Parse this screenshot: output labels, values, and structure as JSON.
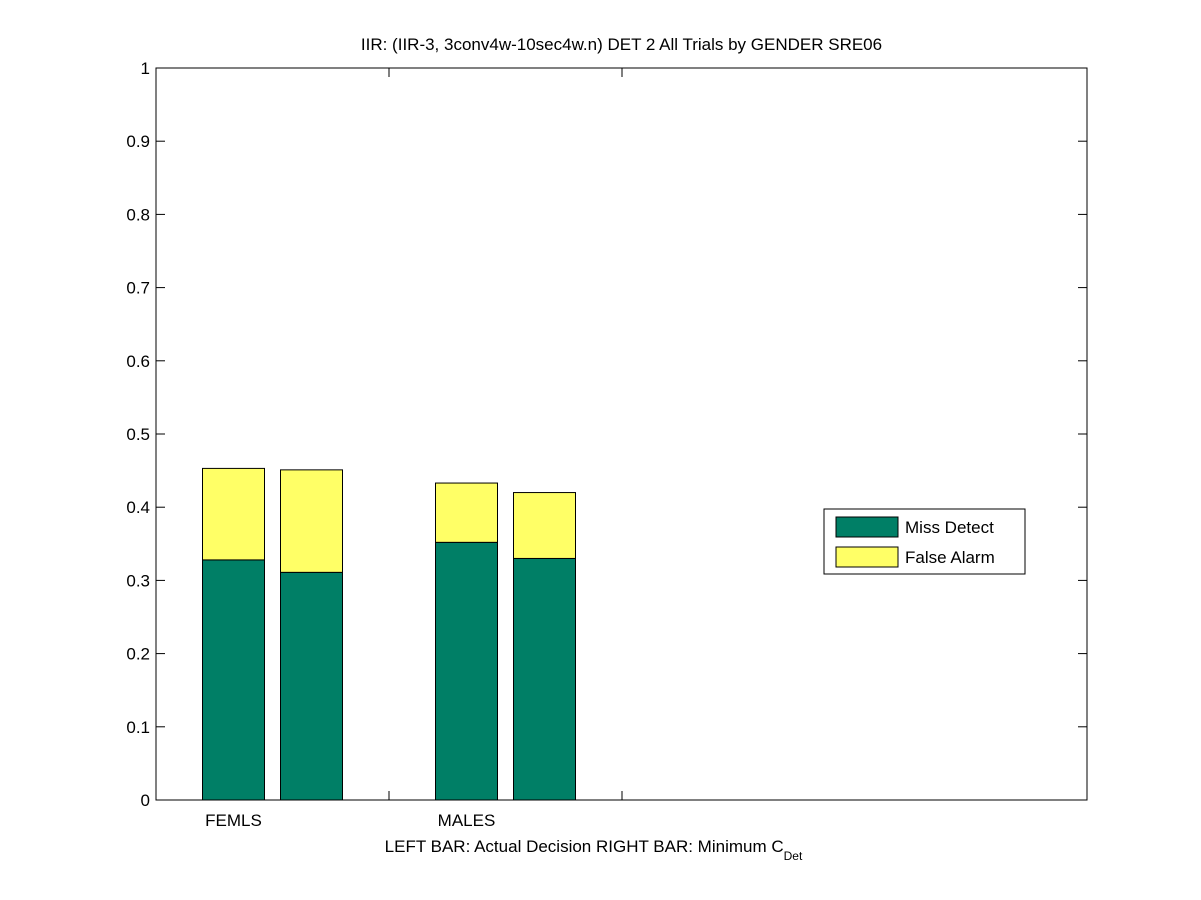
{
  "chart_data": {
    "type": "bar",
    "stacked": true,
    "title": "IIR: (IIR-3, 3conv4w-10sec4w.n) DET 2 All Trials by GENDER SRE06",
    "xlabel_main": "LEFT BAR: Actual Decision     RIGHT BAR: Minimum C",
    "xlabel_sub": "Det",
    "ylim": [
      0,
      1
    ],
    "yticks": [
      "0",
      "0.1",
      "0.2",
      "0.3",
      "0.4",
      "0.5",
      "0.6",
      "0.7",
      "0.8",
      "0.9",
      "1"
    ],
    "categories": [
      "FEMLS",
      "MALES"
    ],
    "bars": [
      {
        "category": "FEMLS",
        "side": "left",
        "miss": 0.328,
        "false_alarm": 0.125
      },
      {
        "category": "FEMLS",
        "side": "right",
        "miss": 0.311,
        "false_alarm": 0.14
      },
      {
        "category": "MALES",
        "side": "left",
        "miss": 0.352,
        "false_alarm": 0.081
      },
      {
        "category": "MALES",
        "side": "right",
        "miss": 0.33,
        "false_alarm": 0.09
      }
    ],
    "series": [
      {
        "name": "Miss Detect",
        "color": "#007F66"
      },
      {
        "name": "False Alarm",
        "color": "#FFFF66"
      }
    ],
    "legend_position": "right",
    "grid": false
  }
}
